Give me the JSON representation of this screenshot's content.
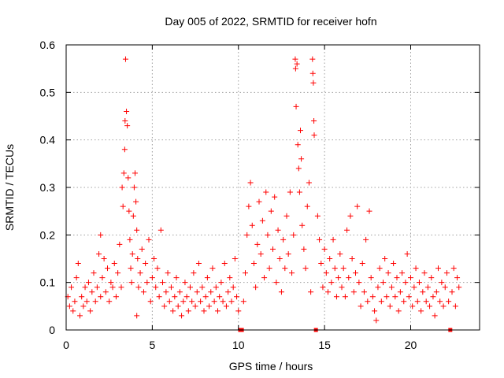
{
  "chart_data": {
    "type": "scatter",
    "title": "Day 005 of 2022, SRMTID for receiver hofn",
    "xlabel": "GPS time / hours",
    "ylabel": "SRMTID / TECUs",
    "xlim": [
      0,
      24
    ],
    "ylim": [
      0,
      0.6
    ],
    "x_ticks": [
      0,
      5,
      10,
      15,
      20
    ],
    "x_tick_labels": [
      "0",
      "5",
      "10",
      "15",
      "20"
    ],
    "y_ticks": [
      0,
      0.1,
      0.2,
      0.3,
      0.4,
      0.5,
      0.6
    ],
    "y_tick_labels": [
      "0",
      "0.1",
      "0.2",
      "0.3",
      "0.4",
      "0.5",
      "0.6"
    ],
    "grid": true,
    "legend": "none",
    "series": [
      {
        "name": "SRMTID",
        "color": "#ff0000",
        "marker": "plus",
        "points": [
          [
            0.1,
            0.07
          ],
          [
            0.2,
            0.05
          ],
          [
            0.3,
            0.09
          ],
          [
            0.4,
            0.04
          ],
          [
            0.5,
            0.06
          ],
          [
            0.6,
            0.11
          ],
          [
            0.7,
            0.14
          ],
          [
            0.8,
            0.03
          ],
          [
            0.9,
            0.07
          ],
          [
            1.0,
            0.05
          ],
          [
            1.1,
            0.09
          ],
          [
            1.2,
            0.06
          ],
          [
            1.3,
            0.1
          ],
          [
            1.4,
            0.04
          ],
          [
            1.5,
            0.08
          ],
          [
            1.6,
            0.12
          ],
          [
            1.7,
            0.06
          ],
          [
            1.8,
            0.09
          ],
          [
            1.9,
            0.16
          ],
          [
            2.0,
            0.07
          ],
          [
            2.0,
            0.2
          ],
          [
            2.1,
            0.11
          ],
          [
            2.2,
            0.15
          ],
          [
            2.3,
            0.08
          ],
          [
            2.4,
            0.13
          ],
          [
            2.5,
            0.06
          ],
          [
            2.6,
            0.1
          ],
          [
            2.7,
            0.09
          ],
          [
            2.8,
            0.14
          ],
          [
            2.9,
            0.07
          ],
          [
            3.0,
            0.12
          ],
          [
            3.1,
            0.18
          ],
          [
            3.2,
            0.09
          ],
          [
            3.25,
            0.3
          ],
          [
            3.3,
            0.26
          ],
          [
            3.35,
            0.33
          ],
          [
            3.4,
            0.38
          ],
          [
            3.42,
            0.44
          ],
          [
            3.45,
            0.57
          ],
          [
            3.5,
            0.46
          ],
          [
            3.55,
            0.43
          ],
          [
            3.6,
            0.32
          ],
          [
            3.65,
            0.25
          ],
          [
            3.7,
            0.19
          ],
          [
            3.75,
            0.13
          ],
          [
            3.8,
            0.1
          ],
          [
            3.85,
            0.16
          ],
          [
            3.9,
            0.24
          ],
          [
            3.95,
            0.3
          ],
          [
            4.0,
            0.33
          ],
          [
            4.05,
            0.27
          ],
          [
            4.1,
            0.21
          ],
          [
            4.15,
            0.15
          ],
          [
            4.2,
            0.09
          ],
          [
            4.1,
            0.03
          ],
          [
            4.3,
            0.12
          ],
          [
            4.4,
            0.17
          ],
          [
            4.5,
            0.08
          ],
          [
            4.6,
            0.14
          ],
          [
            4.7,
            0.1
          ],
          [
            4.8,
            0.19
          ],
          [
            4.9,
            0.06
          ],
          [
            5.0,
            0.11
          ],
          [
            5.1,
            0.15
          ],
          [
            5.2,
            0.09
          ],
          [
            5.3,
            0.13
          ],
          [
            5.4,
            0.07
          ],
          [
            5.5,
            0.21
          ],
          [
            5.6,
            0.1
          ],
          [
            5.7,
            0.05
          ],
          [
            5.8,
            0.08
          ],
          [
            5.9,
            0.12
          ],
          [
            6.0,
            0.06
          ],
          [
            6.1,
            0.09
          ],
          [
            6.2,
            0.04
          ],
          [
            6.3,
            0.07
          ],
          [
            6.4,
            0.11
          ],
          [
            6.5,
            0.05
          ],
          [
            6.6,
            0.08
          ],
          [
            6.7,
            0.03
          ],
          [
            6.8,
            0.06
          ],
          [
            6.9,
            0.1
          ],
          [
            7.0,
            0.07
          ],
          [
            7.1,
            0.04
          ],
          [
            7.2,
            0.09
          ],
          [
            7.3,
            0.06
          ],
          [
            7.4,
            0.12
          ],
          [
            7.5,
            0.05
          ],
          [
            7.6,
            0.08
          ],
          [
            7.7,
            0.14
          ],
          [
            7.8,
            0.06
          ],
          [
            7.9,
            0.09
          ],
          [
            8.0,
            0.04
          ],
          [
            8.1,
            0.07
          ],
          [
            8.2,
            0.11
          ],
          [
            8.3,
            0.05
          ],
          [
            8.4,
            0.08
          ],
          [
            8.5,
            0.13
          ],
          [
            8.6,
            0.06
          ],
          [
            8.7,
            0.09
          ],
          [
            8.8,
            0.04
          ],
          [
            8.9,
            0.07
          ],
          [
            9.0,
            0.1
          ],
          [
            9.1,
            0.06
          ],
          [
            9.2,
            0.14
          ],
          [
            9.3,
            0.05
          ],
          [
            9.4,
            0.08
          ],
          [
            9.5,
            0.11
          ],
          [
            9.6,
            0.06
          ],
          [
            9.7,
            0.09
          ],
          [
            9.8,
            0.15
          ],
          [
            9.9,
            0.07
          ],
          [
            10.0,
            0.04
          ],
          [
            10.1,
            0.0
          ],
          [
            10.2,
            0.0
          ],
          [
            10.3,
            0.06
          ],
          [
            10.4,
            0.12
          ],
          [
            10.5,
            0.2
          ],
          [
            10.6,
            0.26
          ],
          [
            10.7,
            0.31
          ],
          [
            10.8,
            0.22
          ],
          [
            10.9,
            0.14
          ],
          [
            11.0,
            0.09
          ],
          [
            11.1,
            0.18
          ],
          [
            11.2,
            0.27
          ],
          [
            11.3,
            0.16
          ],
          [
            11.4,
            0.23
          ],
          [
            11.5,
            0.11
          ],
          [
            11.6,
            0.29
          ],
          [
            11.7,
            0.2
          ],
          [
            11.8,
            0.13
          ],
          [
            11.9,
            0.25
          ],
          [
            12.0,
            0.17
          ],
          [
            12.1,
            0.28
          ],
          [
            12.2,
            0.1
          ],
          [
            12.3,
            0.21
          ],
          [
            12.4,
            0.15
          ],
          [
            12.5,
            0.08
          ],
          [
            12.6,
            0.19
          ],
          [
            12.7,
            0.13
          ],
          [
            12.8,
            0.24
          ],
          [
            12.9,
            0.16
          ],
          [
            13.0,
            0.29
          ],
          [
            13.1,
            0.12
          ],
          [
            13.2,
            0.2
          ],
          [
            13.3,
            0.57
          ],
          [
            13.32,
            0.55
          ],
          [
            13.35,
            0.47
          ],
          [
            13.4,
            0.56
          ],
          [
            13.45,
            0.39
          ],
          [
            13.5,
            0.34
          ],
          [
            13.55,
            0.29
          ],
          [
            13.6,
            0.42
          ],
          [
            13.65,
            0.36
          ],
          [
            13.7,
            0.22
          ],
          [
            13.8,
            0.17
          ],
          [
            13.9,
            0.13
          ],
          [
            14.0,
            0.26
          ],
          [
            14.1,
            0.31
          ],
          [
            14.2,
            0.08
          ],
          [
            14.3,
            0.57
          ],
          [
            14.32,
            0.54
          ],
          [
            14.35,
            0.52
          ],
          [
            14.38,
            0.44
          ],
          [
            14.4,
            0.41
          ],
          [
            14.5,
            0.0
          ],
          [
            14.6,
            0.24
          ],
          [
            14.7,
            0.19
          ],
          [
            14.8,
            0.14
          ],
          [
            14.9,
            0.09
          ],
          [
            15.0,
            0.17
          ],
          [
            15.1,
            0.12
          ],
          [
            15.2,
            0.08
          ],
          [
            15.3,
            0.15
          ],
          [
            15.4,
            0.1
          ],
          [
            15.5,
            0.19
          ],
          [
            15.6,
            0.13
          ],
          [
            15.7,
            0.07
          ],
          [
            15.8,
            0.11
          ],
          [
            15.9,
            0.16
          ],
          [
            16.0,
            0.09
          ],
          [
            16.1,
            0.13
          ],
          [
            16.2,
            0.07
          ],
          [
            16.3,
            0.21
          ],
          [
            16.4,
            0.11
          ],
          [
            16.5,
            0.24
          ],
          [
            16.6,
            0.15
          ],
          [
            16.7,
            0.08
          ],
          [
            16.8,
            0.12
          ],
          [
            16.9,
            0.26
          ],
          [
            17.0,
            0.1
          ],
          [
            17.1,
            0.05
          ],
          [
            17.2,
            0.14
          ],
          [
            17.3,
            0.08
          ],
          [
            17.4,
            0.19
          ],
          [
            17.5,
            0.06
          ],
          [
            17.6,
            0.25
          ],
          [
            17.7,
            0.11
          ],
          [
            17.8,
            0.07
          ],
          [
            17.9,
            0.04
          ],
          [
            18.0,
            0.02
          ],
          [
            18.1,
            0.09
          ],
          [
            18.2,
            0.13
          ],
          [
            18.3,
            0.06
          ],
          [
            18.4,
            0.1
          ],
          [
            18.5,
            0.15
          ],
          [
            18.6,
            0.07
          ],
          [
            18.7,
            0.12
          ],
          [
            18.8,
            0.05
          ],
          [
            18.9,
            0.09
          ],
          [
            19.0,
            0.14
          ],
          [
            19.1,
            0.07
          ],
          [
            19.2,
            0.11
          ],
          [
            19.3,
            0.04
          ],
          [
            19.4,
            0.08
          ],
          [
            19.5,
            0.12
          ],
          [
            19.6,
            0.06
          ],
          [
            19.7,
            0.1
          ],
          [
            19.8,
            0.16
          ],
          [
            19.9,
            0.07
          ],
          [
            20.0,
            0.11
          ],
          [
            20.1,
            0.05
          ],
          [
            20.2,
            0.09
          ],
          [
            20.3,
            0.13
          ],
          [
            20.4,
            0.06
          ],
          [
            20.5,
            0.1
          ],
          [
            20.6,
            0.04
          ],
          [
            20.7,
            0.08
          ],
          [
            20.8,
            0.12
          ],
          [
            20.9,
            0.06
          ],
          [
            21.0,
            0.09
          ],
          [
            21.1,
            0.05
          ],
          [
            21.2,
            0.11
          ],
          [
            21.3,
            0.07
          ],
          [
            21.4,
            0.03
          ],
          [
            21.5,
            0.08
          ],
          [
            21.6,
            0.13
          ],
          [
            21.7,
            0.06
          ],
          [
            21.8,
            0.1
          ],
          [
            21.9,
            0.05
          ],
          [
            22.0,
            0.09
          ],
          [
            22.1,
            0.12
          ],
          [
            22.2,
            0.06
          ],
          [
            22.3,
            0.0
          ],
          [
            22.4,
            0.08
          ],
          [
            22.5,
            0.13
          ],
          [
            22.6,
            0.05
          ],
          [
            22.7,
            0.11
          ],
          [
            22.8,
            0.09
          ]
        ]
      }
    ]
  }
}
